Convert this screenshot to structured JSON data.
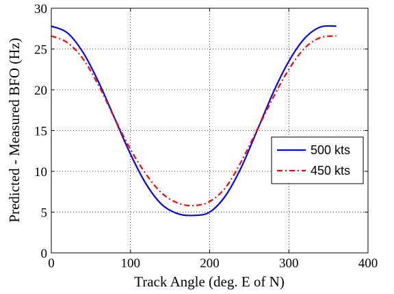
{
  "chart_data": {
    "type": "line",
    "xlabel": "Track Angle (deg. E of N)",
    "ylabel": "Predicted - Measured BFO (Hz)",
    "xlim": [
      0,
      400
    ],
    "ylim": [
      0,
      30
    ],
    "xticks": [
      "0",
      "100",
      "200",
      "300",
      "400"
    ],
    "yticks": [
      "0",
      "5",
      "10",
      "15",
      "20",
      "25",
      "30"
    ],
    "grid": true,
    "legend_position": "right",
    "series": [
      {
        "name": "500 kts",
        "color": "#0000ff",
        "style": "solid",
        "x": [
          0,
          20,
          40,
          60,
          80,
          100,
          120,
          140,
          160,
          180,
          200,
          220,
          240,
          260,
          280,
          300,
          320,
          340,
          360
        ],
        "y": [
          27.8,
          27.0,
          24.6,
          20.9,
          16.5,
          12.1,
          8.4,
          5.9,
          4.8,
          4.6,
          5.0,
          7.0,
          10.5,
          15.0,
          19.6,
          23.5,
          26.3,
          27.7,
          27.8
        ]
      },
      {
        "name": "450 kts",
        "color": "#ff0000",
        "style": "dashed",
        "x": [
          0,
          20,
          40,
          60,
          80,
          100,
          120,
          140,
          160,
          180,
          200,
          220,
          240,
          260,
          280,
          300,
          320,
          340,
          360
        ],
        "y": [
          26.6,
          25.8,
          23.8,
          20.5,
          16.5,
          12.7,
          9.6,
          7.3,
          6.1,
          5.8,
          6.3,
          8.0,
          11.2,
          15.1,
          19.0,
          22.5,
          25.1,
          26.4,
          26.6
        ]
      }
    ]
  }
}
